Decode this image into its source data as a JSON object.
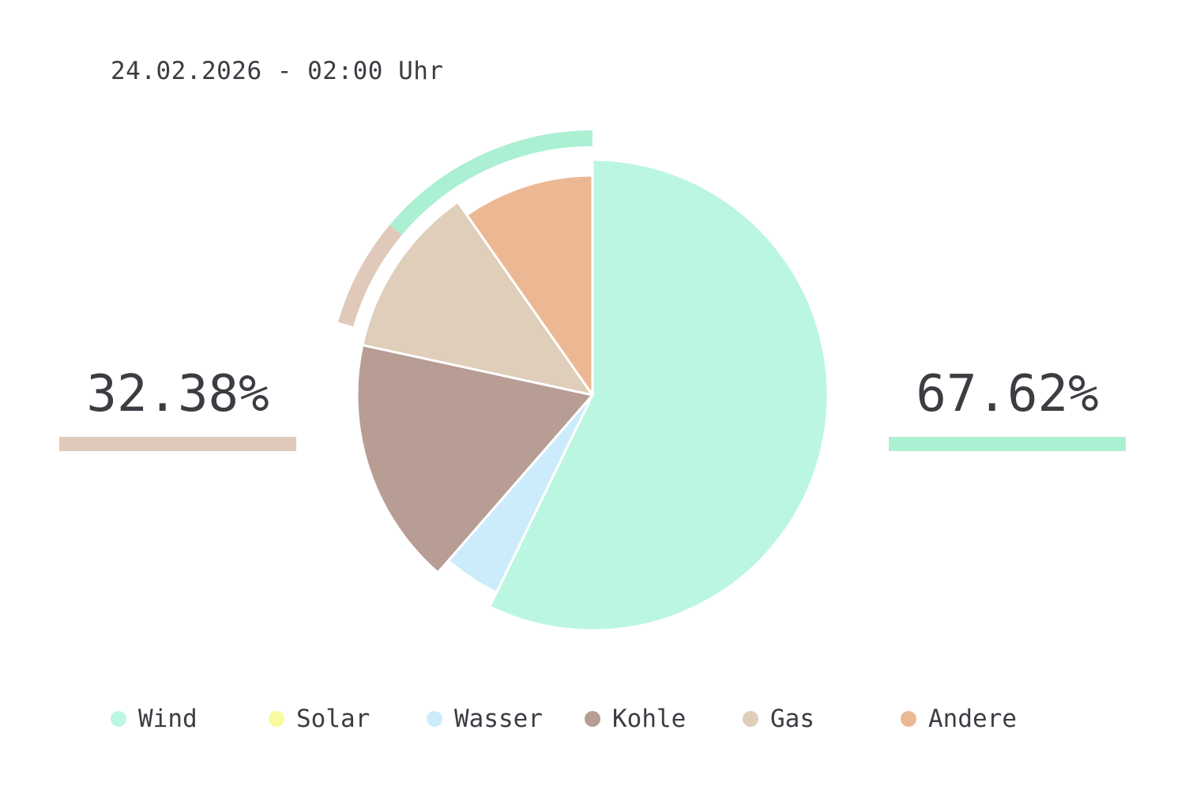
{
  "timestamp": "24.02.2026 - 02:00 Uhr",
  "summary": {
    "left": {
      "label": "32.38%",
      "value": 32.38,
      "color": "#e0c9ba"
    },
    "right": {
      "label": "67.62%",
      "value": 67.62,
      "color": "#abf0d3"
    }
  },
  "chart_data": {
    "type": "pie",
    "start_angle_deg": 0,
    "direction": "clockwise",
    "slices": [
      {
        "name": "Wind",
        "value": 57.2,
        "color": "#bbf6e1",
        "exploded": false
      },
      {
        "name": "Solar",
        "value": 0.0,
        "color": "#fafaa0",
        "exploded": false
      },
      {
        "name": "Wasser",
        "value": 4.2,
        "color": "#cdecfb",
        "exploded": true
      },
      {
        "name": "Kohle",
        "value": 17.0,
        "color": "#b79d94",
        "exploded": false
      },
      {
        "name": "Gas",
        "value": 11.9,
        "color": "#dfceb9",
        "exploded": false
      },
      {
        "name": "Andere",
        "value": 9.7,
        "color": "#ecb894",
        "exploded": true
      }
    ],
    "outer_ring": [
      {
        "value": 32.38,
        "color": "#e0c9ba"
      },
      {
        "value": 67.62,
        "color": "#abf0d3"
      }
    ],
    "legend_position": "bottom"
  }
}
